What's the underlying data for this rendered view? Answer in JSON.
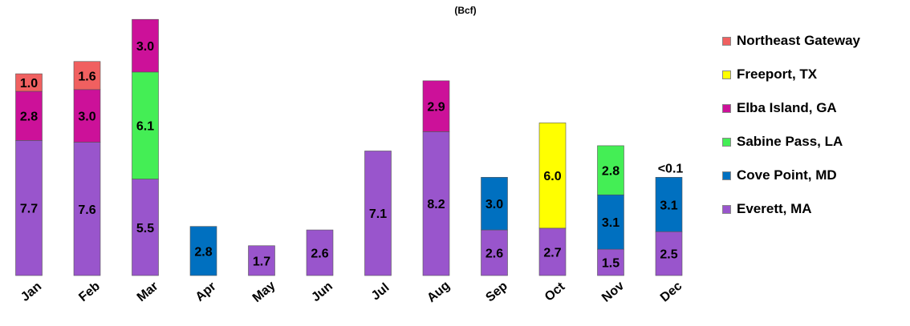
{
  "subtitle": "(Bcf)",
  "chart_data": {
    "type": "bar",
    "stacked": true,
    "categories": [
      "Jan",
      "Feb",
      "Mar",
      "Apr",
      "May",
      "Jun",
      "Jul",
      "Aug",
      "Sep",
      "Oct",
      "Nov",
      "Dec"
    ],
    "series": [
      {
        "name": "Everett, MA",
        "color": "#9955cc",
        "values": [
          7.7,
          7.6,
          5.5,
          0,
          1.7,
          2.6,
          7.1,
          8.2,
          2.6,
          2.7,
          1.5,
          2.5
        ]
      },
      {
        "name": "Cove Point, MD",
        "color": "#0070c0",
        "values": [
          0,
          0,
          0,
          2.8,
          0,
          0,
          0,
          0,
          3.0,
          0,
          3.1,
          3.1
        ]
      },
      {
        "name": "Sabine Pass, LA",
        "color": "#44ee55",
        "values": [
          0,
          0,
          6.1,
          0,
          0,
          0,
          0,
          0,
          0,
          0,
          2.8,
          0
        ]
      },
      {
        "name": "Elba Island, GA",
        "color": "#cc1199",
        "values": [
          2.8,
          3.0,
          3.0,
          0,
          0,
          0,
          0,
          2.9,
          0,
          0,
          0,
          0
        ]
      },
      {
        "name": "Freeport, TX",
        "color": "#ffff00",
        "values": [
          0,
          0,
          0,
          0,
          0,
          0,
          0,
          0,
          0,
          6.0,
          0,
          0
        ]
      },
      {
        "name": "Northeast Gateway",
        "color": "#f06060",
        "values": [
          1.0,
          1.6,
          0,
          0,
          0,
          0,
          0,
          0,
          0,
          0,
          0,
          0
        ]
      }
    ],
    "labels": [
      [
        "7.7",
        "",
        "",
        "2.8",
        "",
        "1.0"
      ],
      [
        "7.6",
        "",
        "",
        "3.0",
        "",
        "1.6"
      ],
      [
        "5.5",
        "",
        "6.1",
        "3.0",
        "",
        ""
      ],
      [
        "",
        "2.8",
        "",
        "",
        "",
        ""
      ],
      [
        "1.7",
        "",
        "",
        "",
        "",
        ""
      ],
      [
        "2.6",
        "",
        "",
        "",
        "",
        ""
      ],
      [
        "7.1",
        "",
        "",
        "",
        "",
        ""
      ],
      [
        "8.2",
        "",
        "",
        "2.9",
        "",
        ""
      ],
      [
        "2.6",
        "3.0",
        "",
        "",
        "",
        ""
      ],
      [
        "2.7",
        "",
        "",
        "",
        "6.0",
        ""
      ],
      [
        "1.5",
        "3.1",
        "2.8",
        "",
        "",
        ""
      ],
      [
        "2.5",
        "3.1",
        "",
        "",
        "",
        ""
      ]
    ],
    "top_annotations": [
      {
        "category": "Dec",
        "text": "<0.1"
      }
    ],
    "legend_order": [
      "Northeast Gateway",
      "Freeport, TX",
      "Elba Island, GA",
      "Sabine Pass, LA",
      "Cove Point, MD",
      "Everett, MA"
    ],
    "ylim": [
      0,
      14.7
    ],
    "legend_position": "right"
  }
}
